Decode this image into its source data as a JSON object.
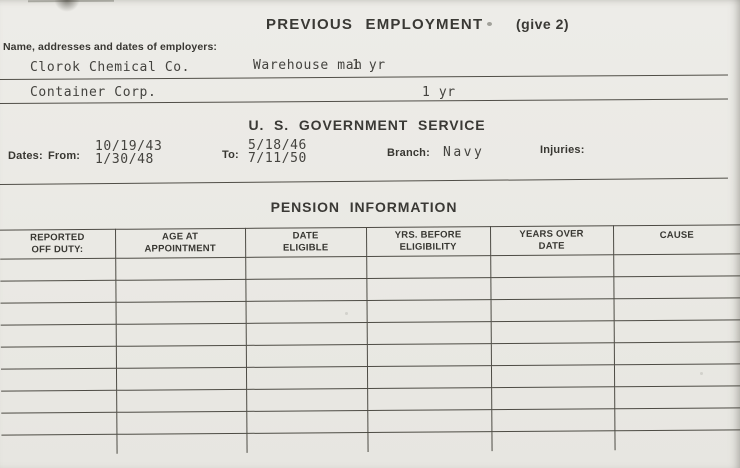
{
  "previous_employment": {
    "title": "PREVIOUS EMPLOYMENT",
    "note": "(give 2)",
    "employers_label": "Name, addresses and dates of employers:",
    "entries": [
      {
        "employer": "Clorok Chemical Co.",
        "position": "Warehouse man",
        "duration": "1 yr"
      },
      {
        "employer": "Container Corp.",
        "position": "",
        "duration": "1 yr"
      }
    ]
  },
  "government_service": {
    "title": "U. S.  GOVERNMENT  SERVICE",
    "dates_label": "Dates:",
    "from_label": "From:",
    "from_values": {
      "line1": "10/19/43",
      "line2": "1/30/48"
    },
    "to_label": "To:",
    "to_values": {
      "line1": "5/18/46",
      "line2": "7/11/50"
    },
    "branch_label": "Branch:",
    "branch_value": "Navy",
    "injuries_label": "Injuries:",
    "injuries_value": ""
  },
  "pension_information": {
    "title": "PENSION  INFORMATION",
    "columns": [
      {
        "line1": "REPORTED",
        "line2": "OFF DUTY:"
      },
      {
        "line1": "AGE AT",
        "line2": "APPOINTMENT"
      },
      {
        "line1": "DATE",
        "line2": "ELIGIBLE"
      },
      {
        "line1": "YRS. BEFORE",
        "line2": "ELIGIBILITY"
      },
      {
        "line1": "YEARS OVER",
        "line2": "DATE"
      },
      {
        "line1": "CAUSE",
        "line2": ""
      }
    ],
    "empty_row_count": 9,
    "rows": []
  },
  "colors": {
    "paper": "#eae9e4",
    "ink_print": "#383732",
    "ink_typed": "#44433f",
    "rule_line": "#4d4b44"
  }
}
